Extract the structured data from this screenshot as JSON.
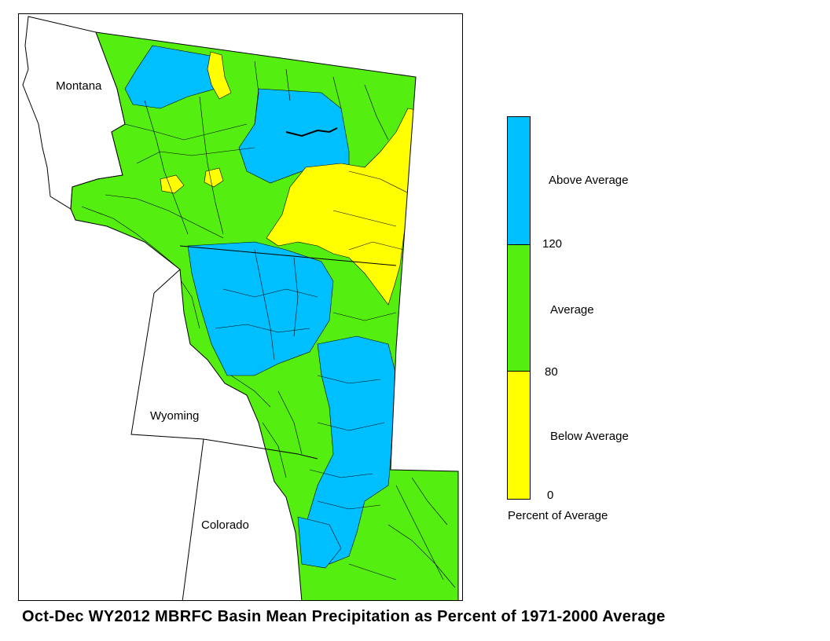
{
  "map": {
    "states": {
      "montana": "Montana",
      "wyoming": "Wyoming",
      "colorado": "Colorado"
    },
    "colors": {
      "above": "#00BFFF",
      "average": "#55EE11",
      "below": "#FFFF00",
      "boundary": "#000000",
      "background": "#FFFFFF"
    }
  },
  "legend": {
    "categories": [
      {
        "label": "Above Average",
        "color": "#00BFFF",
        "min": 120
      },
      {
        "label": "Average",
        "color": "#55EE11",
        "min": 80,
        "max": 120
      },
      {
        "label": "Below Average",
        "color": "#FFFF00",
        "min": 0,
        "max": 80
      }
    ],
    "ticks": [
      "120",
      "80",
      "0"
    ],
    "title": "Percent of Average"
  },
  "caption": "Oct-Dec WY2012 MBRFC Basin Mean Precipitation as Percent of 1971-2000 Average"
}
